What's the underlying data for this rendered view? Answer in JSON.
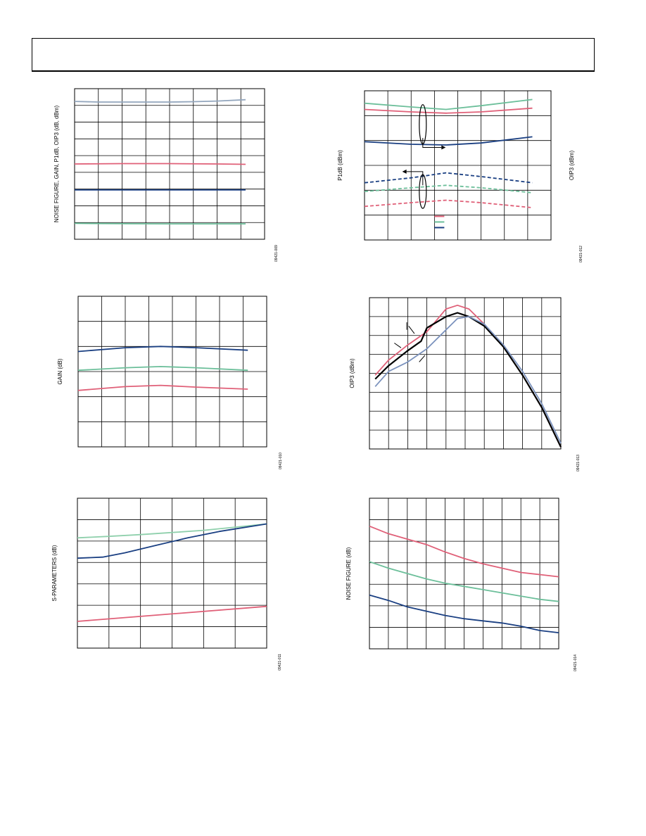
{
  "colors": {
    "pink": "#e06078",
    "green": "#6cbf9a",
    "navy": "#1a3f82",
    "gray": "#93a6bd",
    "steel": "#7b92bd",
    "lightgreen": "#8fd0ac",
    "black": "#000000",
    "grid": "#000000"
  },
  "chart_data": [
    {
      "id": "p1",
      "type": "line",
      "ylabel": "NOISE FIGURE, GAIN, P1dB, OIP3 (dB, dBm)",
      "code": "09421-009",
      "grid": true,
      "cols": 8,
      "rows": 9,
      "xlim": [
        0,
        8
      ],
      "ylim": [
        0,
        9
      ],
      "series": [
        {
          "color": "gray",
          "x": [
            0,
            1,
            2,
            3,
            4,
            5,
            6,
            7.2
          ],
          "y": [
            8.24,
            8.2,
            8.2,
            8.2,
            8.2,
            8.22,
            8.26,
            8.34
          ]
        },
        {
          "color": "pink",
          "x": [
            0,
            2,
            4,
            6,
            7.2
          ],
          "y": [
            4.5,
            4.52,
            4.52,
            4.5,
            4.48
          ]
        },
        {
          "color": "navy",
          "x": [
            0,
            7.2
          ],
          "y": [
            2.95,
            2.95
          ]
        },
        {
          "color": "green",
          "x": [
            0,
            2,
            4,
            6,
            7.2
          ],
          "y": [
            0.95,
            0.93,
            0.92,
            0.92,
            0.92
          ]
        }
      ]
    },
    {
      "id": "p2",
      "type": "line",
      "ylabel": "P1dB (dBm)",
      "ylabel2": "OIP3 (dBm)",
      "code": "09421-012",
      "grid": true,
      "cols": 8,
      "rows": 6,
      "xlim": [
        0,
        8
      ],
      "ylim": [
        0,
        6
      ],
      "series": [
        {
          "color": "green",
          "x": [
            0,
            2,
            3.5,
            5,
            7.2
          ],
          "y": [
            5.5,
            5.35,
            5.25,
            5.4,
            5.65
          ]
        },
        {
          "color": "pink",
          "x": [
            0,
            2,
            3.5,
            5,
            7.2
          ],
          "y": [
            5.25,
            5.15,
            5.1,
            5.15,
            5.3
          ]
        },
        {
          "color": "navy",
          "x": [
            0,
            2,
            3.5,
            5,
            7.2
          ],
          "y": [
            3.95,
            3.85,
            3.82,
            3.9,
            4.15
          ]
        },
        {
          "color": "navy",
          "dash": true,
          "x": [
            0,
            2,
            3.5,
            5,
            7.2
          ],
          "y": [
            2.3,
            2.5,
            2.7,
            2.55,
            2.3
          ]
        },
        {
          "color": "green",
          "dash": true,
          "x": [
            0,
            2,
            3.5,
            5,
            7.2
          ],
          "y": [
            1.95,
            2.1,
            2.2,
            2.1,
            1.9
          ]
        },
        {
          "color": "pink",
          "dash": true,
          "x": [
            0,
            2,
            3.5,
            5,
            7.2
          ],
          "y": [
            1.35,
            1.5,
            1.6,
            1.5,
            1.3
          ]
        }
      ]
    },
    {
      "id": "p3",
      "type": "line",
      "ylabel": "GAIN (dB)",
      "code": "09421-010",
      "grid": true,
      "cols": 8,
      "rows": 6,
      "xlim": [
        0,
        8
      ],
      "ylim": [
        0,
        6
      ],
      "series": [
        {
          "color": "navy",
          "x": [
            0,
            2,
            3.5,
            5,
            7.2
          ],
          "y": [
            3.8,
            3.95,
            4.0,
            3.95,
            3.85
          ]
        },
        {
          "color": "green",
          "x": [
            0,
            2,
            3.5,
            5,
            7.2
          ],
          "y": [
            3.05,
            3.15,
            3.2,
            3.15,
            3.05
          ]
        },
        {
          "color": "pink",
          "x": [
            0,
            2,
            3.5,
            5,
            7.2
          ],
          "y": [
            2.25,
            2.4,
            2.45,
            2.38,
            2.3
          ]
        }
      ]
    },
    {
      "id": "p4",
      "type": "line",
      "ylabel": "OIP3 (dBm)",
      "code": "09421-013",
      "grid": true,
      "cols": 10,
      "rows": 8,
      "xlim": [
        0,
        10
      ],
      "ylim": [
        0,
        8
      ],
      "series": [
        {
          "color": "pink",
          "x": [
            0.3,
            1,
            2,
            3,
            4,
            4.6,
            5.2,
            6,
            7,
            8,
            9,
            10
          ],
          "y": [
            3.9,
            4.7,
            5.5,
            6.2,
            7.4,
            7.6,
            7.4,
            6.6,
            5.4,
            3.9,
            2.2,
            0.1
          ]
        },
        {
          "color": "black",
          "x": [
            0.3,
            1,
            2,
            2.7,
            3,
            4,
            4.6,
            5.2,
            6,
            7,
            8,
            9,
            10
          ],
          "y": [
            3.7,
            4.4,
            5.2,
            5.7,
            6.4,
            7.0,
            7.2,
            7.0,
            6.5,
            5.4,
            3.9,
            2.2,
            0.1
          ]
        },
        {
          "color": "steel",
          "x": [
            0.3,
            1,
            2,
            3,
            4,
            4.6,
            5.2,
            6,
            7,
            8,
            9,
            10
          ],
          "y": [
            3.3,
            4.1,
            4.6,
            5.3,
            6.3,
            6.9,
            7.0,
            6.6,
            5.5,
            4.1,
            2.4,
            0.3
          ]
        }
      ]
    },
    {
      "id": "p5",
      "type": "line",
      "ylabel": "S-PARAMETERS (dB)",
      "code": "09421-011",
      "grid": true,
      "cols": 6,
      "rows": 7,
      "xlim": [
        0,
        6
      ],
      "ylim": [
        0,
        7
      ],
      "series": [
        {
          "color": "lightgreen",
          "x": [
            0,
            1,
            2,
            3,
            4,
            5,
            6
          ],
          "y": [
            5.15,
            5.22,
            5.3,
            5.4,
            5.5,
            5.65,
            5.8
          ]
        },
        {
          "color": "navy",
          "x": [
            0,
            0.8,
            1.5,
            2.5,
            3.5,
            4.5,
            6
          ],
          "y": [
            4.2,
            4.25,
            4.45,
            4.8,
            5.15,
            5.45,
            5.8
          ]
        },
        {
          "color": "pink",
          "x": [
            0,
            6
          ],
          "y": [
            1.25,
            1.95
          ]
        }
      ]
    },
    {
      "id": "p6",
      "type": "line",
      "ylabel": "NOISE FIGURE (dB)",
      "code": "09421-014",
      "grid": true,
      "cols": 10,
      "rows": 7,
      "xlim": [
        0,
        10
      ],
      "ylim": [
        0,
        7
      ],
      "series": [
        {
          "color": "pink",
          "x": [
            0,
            1,
            2,
            3,
            4,
            5,
            6,
            7,
            8,
            9,
            10
          ],
          "y": [
            5.7,
            5.35,
            5.1,
            4.85,
            4.5,
            4.2,
            3.95,
            3.75,
            3.55,
            3.45,
            3.35
          ]
        },
        {
          "color": "green",
          "x": [
            0,
            1,
            2,
            3,
            4,
            5,
            6,
            7,
            8,
            9,
            10
          ],
          "y": [
            4.05,
            3.75,
            3.5,
            3.25,
            3.05,
            2.9,
            2.75,
            2.6,
            2.45,
            2.3,
            2.2
          ]
        },
        {
          "color": "navy",
          "x": [
            0,
            1,
            2,
            3,
            4,
            5,
            6,
            7,
            8,
            9,
            10
          ],
          "y": [
            2.5,
            2.25,
            1.95,
            1.75,
            1.55,
            1.4,
            1.3,
            1.2,
            1.05,
            0.85,
            0.75
          ]
        }
      ]
    }
  ]
}
